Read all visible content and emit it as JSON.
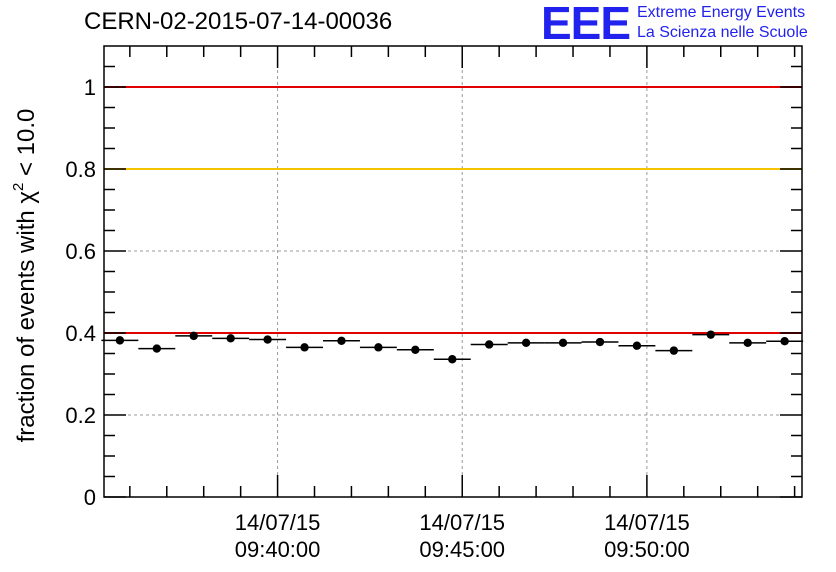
{
  "header": {
    "run_title": "CERN-02-2015-07-14-00036"
  },
  "logo": {
    "mark": "EEE",
    "line1": "Extreme Energy Events",
    "line2": "La Scienza nelle Scuole"
  },
  "chart_data": {
    "type": "scatter",
    "title": "CERN-02-2015-07-14-00036",
    "ylabel_main": "fraction of events with χ",
    "ylabel_exp": "2",
    "ylabel_tail": " < 10.0",
    "ylim": [
      0,
      1.1
    ],
    "y_ticks": [
      "0",
      "0.2",
      "0.4",
      "0.6",
      "0.8",
      "1"
    ],
    "x_ticks": [
      {
        "date": "14/07/15",
        "time": "09:40:00",
        "t": 5
      },
      {
        "date": "14/07/15",
        "time": "09:45:00",
        "t": 10
      },
      {
        "date": "14/07/15",
        "time": "09:50:00",
        "t": 15
      }
    ],
    "x_range_minutes_after_0935": [
      0.3,
      19.2
    ],
    "bin_width_minutes": 1,
    "points": [
      {
        "t": 0.73,
        "y": 0.382
      },
      {
        "t": 1.73,
        "y": 0.362
      },
      {
        "t": 2.73,
        "y": 0.393
      },
      {
        "t": 3.73,
        "y": 0.387
      },
      {
        "t": 4.73,
        "y": 0.384
      },
      {
        "t": 5.73,
        "y": 0.365
      },
      {
        "t": 6.73,
        "y": 0.381
      },
      {
        "t": 7.73,
        "y": 0.365
      },
      {
        "t": 8.73,
        "y": 0.359
      },
      {
        "t": 9.73,
        "y": 0.336
      },
      {
        "t": 10.73,
        "y": 0.372
      },
      {
        "t": 11.73,
        "y": 0.376
      },
      {
        "t": 12.73,
        "y": 0.376
      },
      {
        "t": 13.73,
        "y": 0.378
      },
      {
        "t": 14.73,
        "y": 0.369
      },
      {
        "t": 15.73,
        "y": 0.357
      },
      {
        "t": 16.73,
        "y": 0.396
      },
      {
        "t": 17.73,
        "y": 0.376
      },
      {
        "t": 18.73,
        "y": 0.38
      }
    ],
    "reference_lines": [
      {
        "y": 1.0,
        "color": "#e00000"
      },
      {
        "y": 0.8,
        "color": "#f5c400"
      },
      {
        "y": 0.4,
        "color": "#e00000"
      }
    ],
    "grid": true
  }
}
